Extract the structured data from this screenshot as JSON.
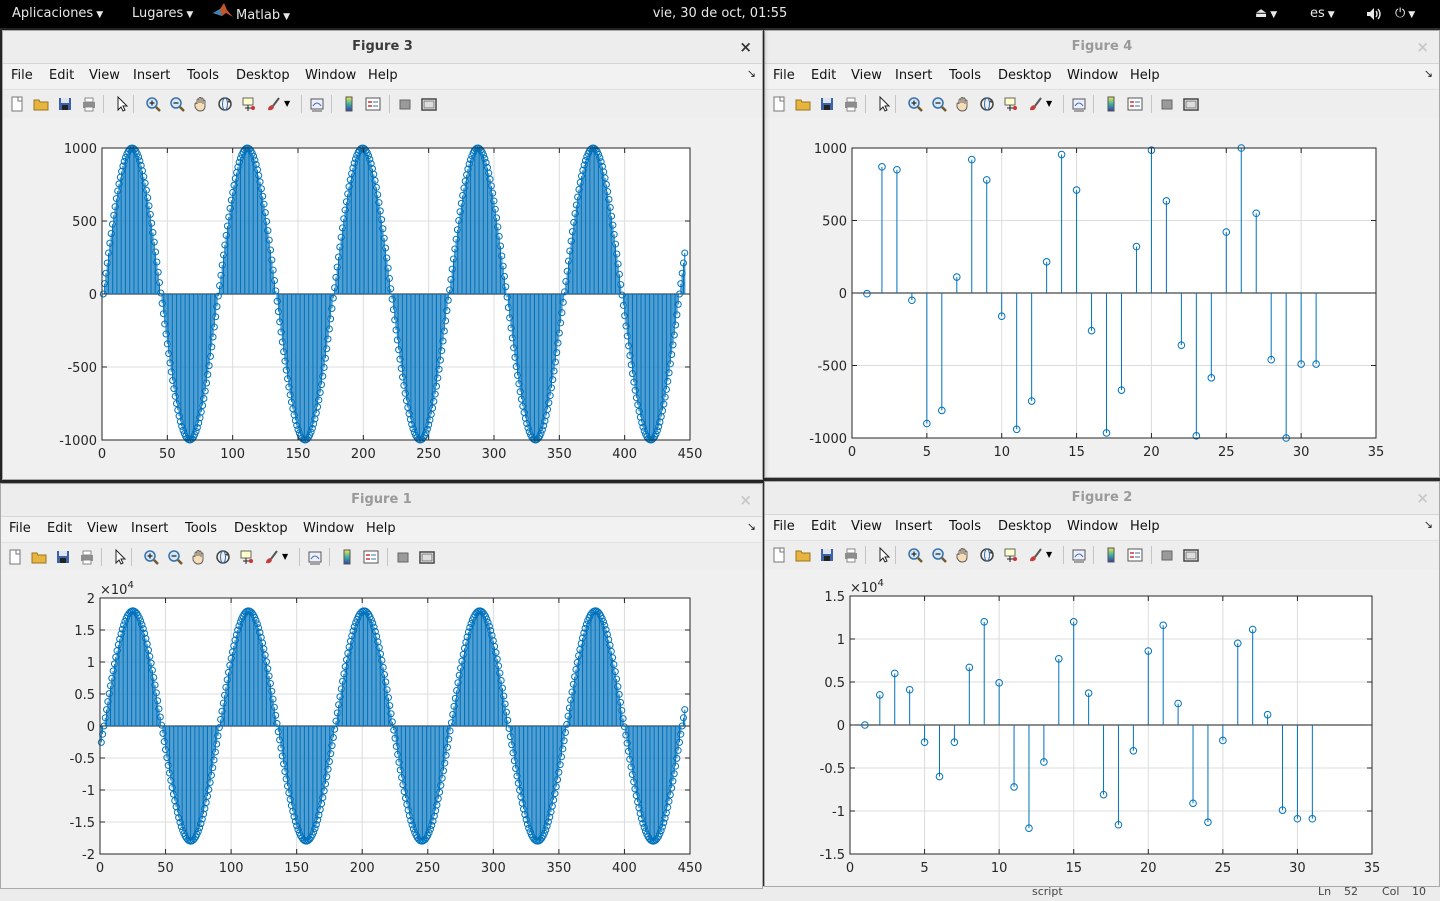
{
  "topbar": {
    "apps_menu": "Aplicaciones",
    "places_menu": "Lugares",
    "app_name": "Matlab",
    "clock": "vie, 30 de oct, 01:55",
    "language": "es"
  },
  "bottom_strip": {
    "script_label": "script",
    "ln_label": "Ln",
    "ln_value": "52",
    "col_label": "Col",
    "col_value": "10"
  },
  "menu_items": [
    "File",
    "Edit",
    "View",
    "Insert",
    "Tools",
    "Desktop",
    "Window",
    "Help"
  ],
  "toolbar_icons": [
    "new-figure-icon",
    "open-file-icon",
    "save-icon",
    "print-icon",
    "edit-plot-icon",
    "zoom-in-icon",
    "zoom-out-icon",
    "pan-icon",
    "rotate-3d-icon",
    "data-cursor-icon",
    "brush-icon",
    "link-plot-icon",
    "colorbar-icon",
    "legend-icon",
    "hide-plot-tools-icon",
    "show-plot-tools-icon"
  ],
  "colors": {
    "stem": "#0072BD",
    "axes_bg": "#ffffff",
    "grid": "#dcdcdc"
  },
  "figures": {
    "fig3": {
      "title": "Figure 3",
      "chart_data": {
        "type": "stem",
        "grid": true,
        "x_range": [
          1,
          446
        ],
        "amplitude": 1000,
        "period_samples": 88.2,
        "zero_crossing_offset": 1,
        "xlim": [
          0,
          450
        ],
        "ylim": [
          -1000,
          1000
        ],
        "xticks": [
          0,
          50,
          100,
          150,
          200,
          250,
          300,
          350,
          400,
          450
        ],
        "yticks": [
          -1000,
          -500,
          0,
          500,
          1000
        ],
        "ytick_labels": [
          "-1000",
          "-500",
          "0",
          "500",
          "1000"
        ],
        "exponent_label": ""
      }
    },
    "fig4": {
      "title": "Figure 4",
      "chart_data": {
        "type": "stem",
        "grid": true,
        "x": [
          1,
          2,
          3,
          4,
          5,
          6,
          7,
          8,
          9,
          10,
          11,
          12,
          13,
          14,
          15,
          16,
          17,
          18,
          19,
          20,
          21,
          22,
          23,
          24,
          25,
          26,
          27,
          28,
          29,
          30,
          31
        ],
        "y": [
          -5,
          870,
          850,
          -50,
          -900,
          -810,
          110,
          920,
          780,
          -160,
          -940,
          -745,
          215,
          955,
          710,
          -260,
          -965,
          -670,
          320,
          985,
          635,
          -360,
          -985,
          -585,
          420,
          1000,
          550,
          -460,
          -1000,
          -490,
          -490
        ],
        "xlim": [
          0,
          35
        ],
        "ylim": [
          -1000,
          1000
        ],
        "xticks": [
          0,
          5,
          10,
          15,
          20,
          25,
          30,
          35
        ],
        "yticks": [
          -1000,
          -500,
          0,
          500,
          1000
        ],
        "ytick_labels": [
          "-1000",
          "-500",
          "0",
          "500",
          "1000"
        ],
        "exponent_label": ""
      }
    },
    "fig1": {
      "title": "Figure 1",
      "chart_data": {
        "type": "stem",
        "grid": true,
        "x_range": [
          1,
          446
        ],
        "amplitude": 1.8,
        "period_samples": 88.2,
        "zero_crossing_offset": 3,
        "xlim": [
          0,
          450
        ],
        "ylim": [
          -2,
          2
        ],
        "xticks": [
          0,
          50,
          100,
          150,
          200,
          250,
          300,
          350,
          400,
          450
        ],
        "yticks": [
          -2,
          -1.5,
          -1,
          -0.5,
          0,
          0.5,
          1,
          1.5,
          2
        ],
        "ytick_labels": [
          "-2",
          "-1.5",
          "-1",
          "-0.5",
          "0",
          "0.5",
          "1",
          "1.5",
          "2"
        ],
        "exponent_label": "×10^4"
      }
    },
    "fig2": {
      "title": "Figure 2",
      "chart_data": {
        "type": "stem",
        "grid": true,
        "x": [
          1,
          2,
          3,
          4,
          5,
          6,
          7,
          8,
          9,
          10,
          11,
          12,
          13,
          14,
          15,
          16,
          17,
          18,
          19,
          20,
          21,
          22,
          23,
          24,
          25,
          26,
          27,
          28,
          29,
          30,
          31
        ],
        "y": [
          0,
          0.35,
          0.6,
          0.41,
          -0.2,
          -0.6,
          -0.2,
          0.67,
          1.2,
          0.49,
          -0.72,
          -1.2,
          -0.43,
          0.77,
          1.2,
          0.37,
          -0.81,
          -1.16,
          -0.3,
          0.86,
          1.16,
          0.25,
          -0.91,
          -1.13,
          -0.18,
          0.95,
          1.11,
          0.12,
          -0.99,
          -1.09,
          -1.09
        ],
        "xlim": [
          0,
          35
        ],
        "ylim": [
          -1.5,
          1.5
        ],
        "xticks": [
          0,
          5,
          10,
          15,
          20,
          25,
          30,
          35
        ],
        "yticks": [
          -1.5,
          -1,
          -0.5,
          0,
          0.5,
          1,
          1.5
        ],
        "ytick_labels": [
          "-1.5",
          "-1",
          "-0.5",
          "0",
          "0.5",
          "1",
          "1.5"
        ],
        "exponent_label": "×10^4"
      }
    }
  }
}
